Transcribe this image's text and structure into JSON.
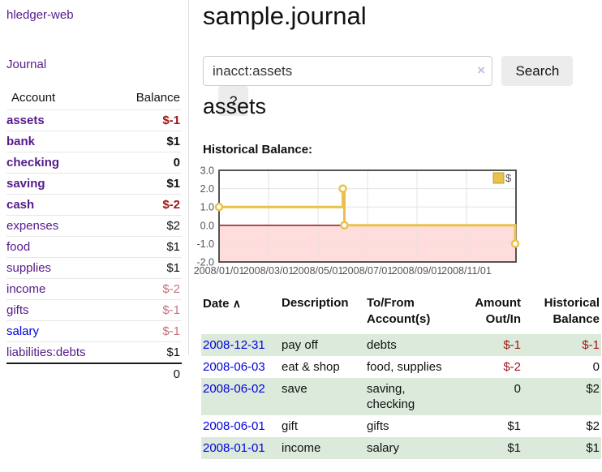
{
  "app": {
    "name": "hledger-web"
  },
  "sidebar": {
    "journal_link": "Journal",
    "accounts_table": {
      "account_header": "Account",
      "balance_header": "Balance",
      "rows": [
        {
          "name": "assets",
          "balance": "$-1",
          "indent": 1,
          "bold": true,
          "negative": true,
          "link_color": "purple"
        },
        {
          "name": "bank",
          "balance": "$1",
          "indent": 2,
          "bold": true,
          "negative": false,
          "link_color": "purple"
        },
        {
          "name": "checking",
          "balance": "0",
          "indent": 3,
          "bold": true,
          "negative": false,
          "link_color": "purple"
        },
        {
          "name": "saving",
          "balance": "$1",
          "indent": 3,
          "bold": true,
          "negative": false,
          "link_color": "purple"
        },
        {
          "name": "cash",
          "balance": "$-2",
          "indent": 2,
          "bold": true,
          "negative": true,
          "link_color": "purple"
        },
        {
          "name": "expenses",
          "balance": "$2",
          "indent": 1,
          "bold": false,
          "negative": false,
          "link_color": "purple"
        },
        {
          "name": "food",
          "balance": "$1",
          "indent": 2,
          "bold": false,
          "negative": false,
          "link_color": "purple"
        },
        {
          "name": "supplies",
          "balance": "$1",
          "indent": 2,
          "bold": false,
          "negative": false,
          "link_color": "purple"
        },
        {
          "name": "income",
          "balance": "$-2",
          "indent": 1,
          "bold": false,
          "negative": true,
          "link_color": "purple"
        },
        {
          "name": "gifts",
          "balance": "$-1",
          "indent": 2,
          "bold": false,
          "negative": true,
          "link_color": "purple"
        },
        {
          "name": "salary",
          "balance": "$-1",
          "indent": 2,
          "bold": false,
          "negative": true,
          "link_color": "blue"
        },
        {
          "name": "liabilities:debts",
          "balance": "$1",
          "indent": 1,
          "bold": false,
          "negative": false,
          "link_color": "purple"
        }
      ],
      "total": "0"
    }
  },
  "header": {
    "title": "sample.journal"
  },
  "search": {
    "value": "inacct:assets",
    "clear_icon": "×",
    "button_label": "Search",
    "help_label": "?"
  },
  "account_page": {
    "heading": "assets",
    "chart_label": "Historical Balance:"
  },
  "chart_data": {
    "type": "line",
    "interpolation": "step-after",
    "title": "Historical Balance of assets",
    "series": [
      {
        "name": "$",
        "color": "#e9c14b",
        "points": [
          [
            "2008-01-01",
            1
          ],
          [
            "2008-06-01",
            2
          ],
          [
            "2008-06-03",
            0
          ],
          [
            "2008-12-31",
            -1
          ]
        ]
      }
    ],
    "x_tick_labels": [
      "2008/01/01",
      "2008/03/01",
      "2008/05/01",
      "2008/07/01",
      "2008/09/01",
      "2008/11/01"
    ],
    "x_tick_months": [
      0,
      2,
      4,
      6,
      8,
      10
    ],
    "x_range_months": 12,
    "y_ticks": [
      3.0,
      2.0,
      1.0,
      0.0,
      -1.0,
      -2.0
    ],
    "ylim": [
      -2,
      3
    ],
    "grid": true,
    "legend": {
      "label": "$",
      "position": "top-right"
    },
    "negative_region_color": "#ffdddd",
    "zero_line_color": "#8b0000",
    "border_color": "#545454",
    "tick_text_color": "#545454"
  },
  "register_table": {
    "headers": {
      "date": "Date",
      "sort_icon": "∧",
      "description": "Description",
      "accounts": "To/From Account(s)",
      "amount": "Amount Out/In",
      "balance": "Historical Balance"
    },
    "rows": [
      {
        "date": "2008-12-31",
        "description": "pay off",
        "accounts": "debts",
        "amount": "$-1",
        "balance": "$-1"
      },
      {
        "date": "2008-06-03",
        "description": "eat & shop",
        "accounts": "food, supplies",
        "amount": "$-2",
        "balance": "0"
      },
      {
        "date": "2008-06-02",
        "description": "save",
        "accounts": "saving, checking",
        "amount": "0",
        "balance": "$2"
      },
      {
        "date": "2008-06-01",
        "description": "gift",
        "accounts": "gifts",
        "amount": "$1",
        "balance": "$2"
      },
      {
        "date": "2008-01-01",
        "description": "income",
        "accounts": "salary",
        "amount": "$1",
        "balance": "$1"
      }
    ]
  },
  "colors": {
    "link_purple": "#551a8b",
    "link_blue": "#0000dd",
    "negative_strong": "#a01616",
    "negative_soft": "#c4727c",
    "row_green": "#dbeadb",
    "series_gold": "#e9c14b"
  }
}
